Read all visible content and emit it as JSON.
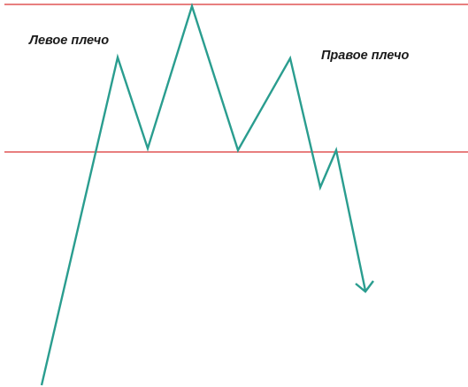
{
  "labels": {
    "left_shoulder": "Левое плечо",
    "right_shoulder": "Правое плечо"
  },
  "colors": {
    "price_line": "#2a9d8f",
    "level_lines": "#e05555",
    "text": "#1a1a1a",
    "background": "#ffffff"
  }
}
